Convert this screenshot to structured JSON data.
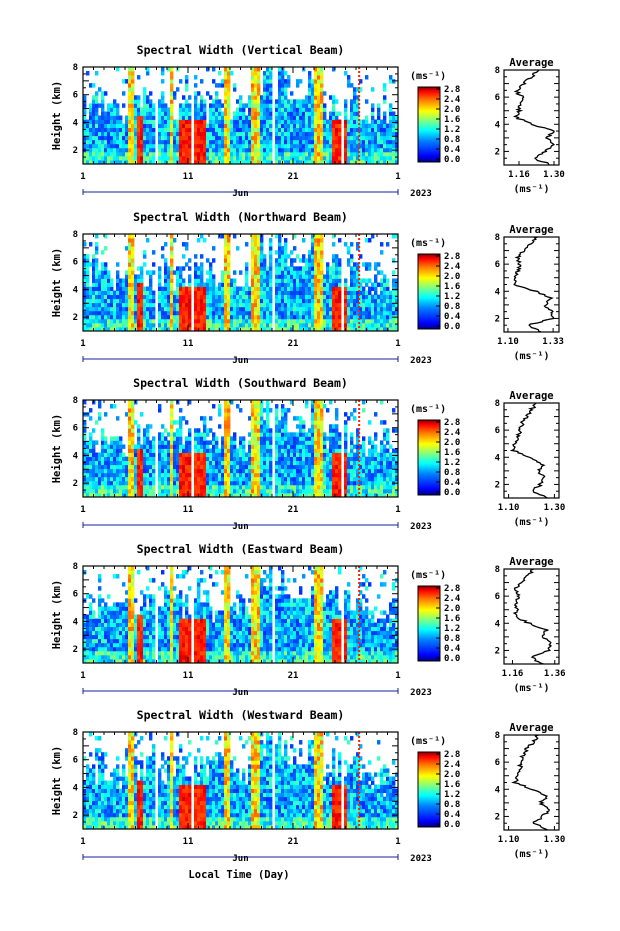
{
  "figure": {
    "xlabel": "Local Time (Day)",
    "ylabel": "Height (km)",
    "x_ticks": [
      "1",
      "11",
      "21",
      "1"
    ],
    "month_label": "Jun",
    "year_label": "2023",
    "y_ticks": [
      "2",
      "4",
      "6",
      "8"
    ],
    "unit_label": "(ms⁻¹)",
    "profile_title": "Average",
    "colormap": [
      "#000080",
      "#0000ff",
      "#0080ff",
      "#00ffff",
      "#80ff80",
      "#ffff00",
      "#ff8000",
      "#ff0000",
      "#800000"
    ]
  },
  "chart_data": [
    {
      "type": "heatmap",
      "title": "Spectral Width (Vertical Beam)",
      "xlabel": "",
      "ylabel": "Height (km)",
      "x_range": [
        1,
        31
      ],
      "ylim": [
        1,
        8
      ],
      "colorbar_ticks": [
        "0.0",
        "0.4",
        "0.8",
        "1.2",
        "1.6",
        "2.0",
        "2.4",
        "2.8"
      ],
      "colorbar_range": [
        0,
        3.0
      ],
      "profile": {
        "title": "Average",
        "xlabel": "(ms⁻¹)",
        "xticks": [
          "1.16",
          "1.30"
        ],
        "xlim": [
          1.1,
          1.32
        ],
        "yticks": [
          "2",
          "4",
          "6",
          "8"
        ],
        "heights": [
          1.0,
          1.5,
          2.0,
          2.5,
          3.0,
          3.5,
          4.0,
          4.5,
          5.0,
          5.5,
          6.0,
          6.5,
          7.0,
          7.5,
          8.0
        ],
        "values": [
          1.29,
          1.22,
          1.27,
          1.3,
          1.27,
          1.3,
          1.21,
          1.15,
          1.16,
          1.16,
          1.17,
          1.15,
          1.18,
          1.21,
          1.24
        ]
      }
    },
    {
      "type": "heatmap",
      "title": "Spectral Width (Northward Beam)",
      "xlabel": "",
      "ylabel": "Height (km)",
      "x_range": [
        1,
        31
      ],
      "ylim": [
        1,
        8
      ],
      "colorbar_ticks": [
        "0.0",
        "0.4",
        "0.8",
        "1.2",
        "1.6",
        "2.0",
        "2.4",
        "2.8"
      ],
      "colorbar_range": [
        0,
        3.0
      ],
      "profile": {
        "title": "Average",
        "xlabel": "(ms⁻¹)",
        "xticks": [
          "1.10",
          "1.33"
        ],
        "xlim": [
          1.08,
          1.36
        ],
        "yticks": [
          "2",
          "4",
          "6",
          "8"
        ],
        "heights": [
          1.0,
          1.5,
          2.0,
          2.5,
          3.0,
          3.5,
          4.0,
          4.5,
          5.0,
          5.5,
          6.0,
          6.5,
          7.0,
          7.5,
          8.0
        ],
        "values": [
          1.27,
          1.2,
          1.33,
          1.32,
          1.29,
          1.32,
          1.24,
          1.13,
          1.14,
          1.15,
          1.16,
          1.15,
          1.18,
          1.22,
          1.25
        ]
      }
    },
    {
      "type": "heatmap",
      "title": "Spectral Width (Southward Beam)",
      "xlabel": "",
      "ylabel": "Height (km)",
      "x_range": [
        1,
        31
      ],
      "ylim": [
        1,
        8
      ],
      "colorbar_ticks": [
        "0.0",
        "0.4",
        "0.8",
        "1.2",
        "1.6",
        "2.0",
        "2.4",
        "2.8"
      ],
      "colorbar_range": [
        0,
        3.0
      ],
      "profile": {
        "title": "Average",
        "xlabel": "(ms⁻¹)",
        "xticks": [
          "1.10",
          "1.30"
        ],
        "xlim": [
          1.08,
          1.32
        ],
        "yticks": [
          "2",
          "4",
          "6",
          "8"
        ],
        "heights": [
          1.0,
          1.5,
          2.0,
          2.5,
          3.0,
          3.5,
          4.0,
          4.5,
          5.0,
          5.5,
          6.0,
          6.5,
          7.0,
          7.5,
          8.0
        ],
        "values": [
          1.27,
          1.2,
          1.24,
          1.26,
          1.23,
          1.25,
          1.19,
          1.12,
          1.13,
          1.14,
          1.15,
          1.16,
          1.18,
          1.2,
          1.22
        ]
      }
    },
    {
      "type": "heatmap",
      "title": "Spectral Width (Eastward Beam)",
      "xlabel": "",
      "ylabel": "Height (km)",
      "x_range": [
        1,
        31
      ],
      "ylim": [
        1,
        8
      ],
      "colorbar_ticks": [
        "0.0",
        "0.4",
        "0.8",
        "1.2",
        "1.6",
        "2.0",
        "2.4",
        "2.8"
      ],
      "colorbar_range": [
        0,
        3.0
      ],
      "profile": {
        "title": "Average",
        "xlabel": "(ms⁻¹)",
        "xticks": [
          "1.16",
          "1.36"
        ],
        "xlim": [
          1.12,
          1.38
        ],
        "yticks": [
          "2",
          "4",
          "6",
          "8"
        ],
        "heights": [
          1.0,
          1.5,
          2.0,
          2.5,
          3.0,
          3.5,
          4.0,
          4.5,
          5.0,
          5.5,
          6.0,
          6.5,
          7.0,
          7.5,
          8.0
        ],
        "values": [
          1.3,
          1.25,
          1.33,
          1.34,
          1.3,
          1.32,
          1.24,
          1.17,
          1.18,
          1.18,
          1.19,
          1.17,
          1.2,
          1.23,
          1.26
        ]
      }
    },
    {
      "type": "heatmap",
      "title": "Spectral Width (Westward Beam)",
      "xlabel": "",
      "ylabel": "Height (km)",
      "x_range": [
        1,
        31
      ],
      "ylim": [
        1,
        8
      ],
      "colorbar_ticks": [
        "0.0",
        "0.4",
        "0.8",
        "1.2",
        "1.6",
        "2.0",
        "2.4",
        "2.8"
      ],
      "colorbar_range": [
        0,
        3.0
      ],
      "profile": {
        "title": "Average",
        "xlabel": "(ms⁻¹)",
        "xticks": [
          "1.10",
          "1.30"
        ],
        "xlim": [
          1.08,
          1.32
        ],
        "yticks": [
          "2",
          "4",
          "6",
          "8"
        ],
        "heights": [
          1.0,
          1.5,
          2.0,
          2.5,
          3.0,
          3.5,
          4.0,
          4.5,
          5.0,
          5.5,
          6.0,
          6.5,
          7.0,
          7.5,
          8.0
        ],
        "values": [
          1.27,
          1.21,
          1.25,
          1.28,
          1.24,
          1.27,
          1.2,
          1.13,
          1.14,
          1.15,
          1.15,
          1.16,
          1.18,
          1.21,
          1.23
        ]
      }
    }
  ]
}
